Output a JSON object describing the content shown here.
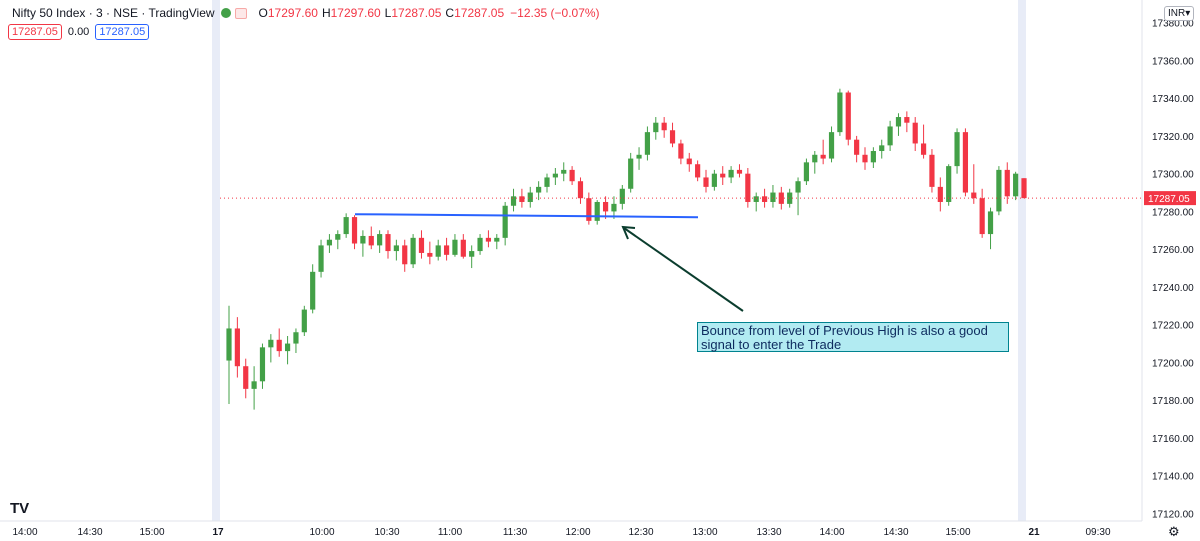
{
  "legend": {
    "symbol": "Nifty 50 Index · 3 · NSE · TradingView",
    "o_label": "O",
    "o": "17297.60",
    "h_label": "H",
    "h": "17297.60",
    "l_label": "L",
    "l": "17287.05",
    "c_label": "C",
    "c": "17287.05",
    "change": "−12.35 (−0.07%)"
  },
  "values_row": {
    "last": "17287.05",
    "change": "0.00",
    "last2": "17287.05"
  },
  "currency_label": "INR▾",
  "last_price_label": "17287.05",
  "annotation_text": "Bounce from level of Previous High is also a good signal to enter the Trade",
  "logo_text": "TV",
  "settings_icon": "gear-icon",
  "colors": {
    "up": "#43a047",
    "down": "#f23645",
    "trendline": "#2962ff",
    "arrow": "#0b3d2e",
    "session": "#e8ecf7"
  },
  "chart_data": {
    "type": "candlestick",
    "title": "",
    "y_ticks": [
      "17380.00",
      "17360.00",
      "17340.00",
      "17320.00",
      "17300.00",
      "17280.00",
      "17260.00",
      "17240.00",
      "17220.00",
      "17200.00",
      "17180.00",
      "17160.00",
      "17140.00",
      "17120.00"
    ],
    "x_ticks": [
      "14:00",
      "14:30",
      "15:00",
      "17",
      "10:00",
      "10:30",
      "11:00",
      "11:30",
      "12:00",
      "12:30",
      "13:00",
      "13:30",
      "14:00",
      "14:30",
      "15:00",
      "21",
      "09:30"
    ],
    "ylim": [
      17116,
      17392
    ],
    "trendline": {
      "y": 17278
    },
    "candles": [
      {
        "o": 17201,
        "h": 17230,
        "l": 17178,
        "c": 17218
      },
      {
        "o": 17218,
        "h": 17224,
        "l": 17192,
        "c": 17198
      },
      {
        "o": 17198,
        "h": 17202,
        "l": 17181,
        "c": 17186
      },
      {
        "o": 17186,
        "h": 17198,
        "l": 17175,
        "c": 17190
      },
      {
        "o": 17190,
        "h": 17210,
        "l": 17186,
        "c": 17208
      },
      {
        "o": 17208,
        "h": 17215,
        "l": 17200,
        "c": 17212
      },
      {
        "o": 17212,
        "h": 17218,
        "l": 17203,
        "c": 17206
      },
      {
        "o": 17206,
        "h": 17214,
        "l": 17199,
        "c": 17210
      },
      {
        "o": 17210,
        "h": 17218,
        "l": 17205,
        "c": 17216
      },
      {
        "o": 17216,
        "h": 17230,
        "l": 17214,
        "c": 17228
      },
      {
        "o": 17228,
        "h": 17252,
        "l": 17226,
        "c": 17248
      },
      {
        "o": 17248,
        "h": 17265,
        "l": 17245,
        "c": 17262
      },
      {
        "o": 17262,
        "h": 17268,
        "l": 17258,
        "c": 17265
      },
      {
        "o": 17265,
        "h": 17270,
        "l": 17260,
        "c": 17268
      },
      {
        "o": 17268,
        "h": 17279,
        "l": 17266,
        "c": 17277
      },
      {
        "o": 17277,
        "h": 17278,
        "l": 17260,
        "c": 17263
      },
      {
        "o": 17263,
        "h": 17270,
        "l": 17256,
        "c": 17267
      },
      {
        "o": 17267,
        "h": 17272,
        "l": 17260,
        "c": 17262
      },
      {
        "o": 17262,
        "h": 17270,
        "l": 17258,
        "c": 17268
      },
      {
        "o": 17268,
        "h": 17270,
        "l": 17255,
        "c": 17259
      },
      {
        "o": 17259,
        "h": 17265,
        "l": 17254,
        "c": 17262
      },
      {
        "o": 17262,
        "h": 17265,
        "l": 17248,
        "c": 17252
      },
      {
        "o": 17252,
        "h": 17268,
        "l": 17250,
        "c": 17266
      },
      {
        "o": 17266,
        "h": 17270,
        "l": 17255,
        "c": 17258
      },
      {
        "o": 17258,
        "h": 17264,
        "l": 17252,
        "c": 17256
      },
      {
        "o": 17256,
        "h": 17265,
        "l": 17254,
        "c": 17262
      },
      {
        "o": 17262,
        "h": 17266,
        "l": 17254,
        "c": 17257
      },
      {
        "o": 17257,
        "h": 17268,
        "l": 17256,
        "c": 17265
      },
      {
        "o": 17265,
        "h": 17268,
        "l": 17255,
        "c": 17256
      },
      {
        "o": 17256,
        "h": 17262,
        "l": 17250,
        "c": 17259
      },
      {
        "o": 17259,
        "h": 17268,
        "l": 17257,
        "c": 17266
      },
      {
        "o": 17266,
        "h": 17270,
        "l": 17261,
        "c": 17264
      },
      {
        "o": 17264,
        "h": 17268,
        "l": 17260,
        "c": 17266
      },
      {
        "o": 17266,
        "h": 17285,
        "l": 17262,
        "c": 17283
      },
      {
        "o": 17283,
        "h": 17292,
        "l": 17280,
        "c": 17288
      },
      {
        "o": 17288,
        "h": 17292,
        "l": 17282,
        "c": 17285
      },
      {
        "o": 17285,
        "h": 17293,
        "l": 17282,
        "c": 17290
      },
      {
        "o": 17290,
        "h": 17296,
        "l": 17286,
        "c": 17293
      },
      {
        "o": 17293,
        "h": 17300,
        "l": 17290,
        "c": 17298
      },
      {
        "o": 17298,
        "h": 17303,
        "l": 17294,
        "c": 17300
      },
      {
        "o": 17300,
        "h": 17306,
        "l": 17296,
        "c": 17302
      },
      {
        "o": 17302,
        "h": 17304,
        "l": 17294,
        "c": 17296
      },
      {
        "o": 17296,
        "h": 17298,
        "l": 17284,
        "c": 17287
      },
      {
        "o": 17287,
        "h": 17290,
        "l": 17273,
        "c": 17275
      },
      {
        "o": 17275,
        "h": 17286,
        "l": 17273,
        "c": 17285
      },
      {
        "o": 17285,
        "h": 17288,
        "l": 17276,
        "c": 17280
      },
      {
        "o": 17280,
        "h": 17288,
        "l": 17276,
        "c": 17284
      },
      {
        "o": 17284,
        "h": 17294,
        "l": 17281,
        "c": 17292
      },
      {
        "o": 17292,
        "h": 17311,
        "l": 17290,
        "c": 17308
      },
      {
        "o": 17308,
        "h": 17314,
        "l": 17302,
        "c": 17310
      },
      {
        "o": 17310,
        "h": 17325,
        "l": 17307,
        "c": 17322
      },
      {
        "o": 17322,
        "h": 17330,
        "l": 17318,
        "c": 17327
      },
      {
        "o": 17327,
        "h": 17330,
        "l": 17319,
        "c": 17323
      },
      {
        "o": 17323,
        "h": 17327,
        "l": 17314,
        "c": 17316
      },
      {
        "o": 17316,
        "h": 17318,
        "l": 17305,
        "c": 17308
      },
      {
        "o": 17308,
        "h": 17311,
        "l": 17301,
        "c": 17305
      },
      {
        "o": 17305,
        "h": 17307,
        "l": 17296,
        "c": 17298
      },
      {
        "o": 17298,
        "h": 17302,
        "l": 17290,
        "c": 17293
      },
      {
        "o": 17293,
        "h": 17302,
        "l": 17291,
        "c": 17300
      },
      {
        "o": 17300,
        "h": 17304,
        "l": 17294,
        "c": 17298
      },
      {
        "o": 17298,
        "h": 17304,
        "l": 17295,
        "c": 17302
      },
      {
        "o": 17302,
        "h": 17305,
        "l": 17298,
        "c": 17300
      },
      {
        "o": 17300,
        "h": 17303,
        "l": 17282,
        "c": 17285
      },
      {
        "o": 17285,
        "h": 17290,
        "l": 17280,
        "c": 17288
      },
      {
        "o": 17288,
        "h": 17292,
        "l": 17282,
        "c": 17285
      },
      {
        "o": 17285,
        "h": 17294,
        "l": 17282,
        "c": 17290
      },
      {
        "o": 17290,
        "h": 17293,
        "l": 17281,
        "c": 17284
      },
      {
        "o": 17284,
        "h": 17292,
        "l": 17282,
        "c": 17290
      },
      {
        "o": 17290,
        "h": 17298,
        "l": 17278,
        "c": 17296
      },
      {
        "o": 17296,
        "h": 17308,
        "l": 17294,
        "c": 17306
      },
      {
        "o": 17306,
        "h": 17312,
        "l": 17300,
        "c": 17310
      },
      {
        "o": 17310,
        "h": 17318,
        "l": 17305,
        "c": 17308
      },
      {
        "o": 17308,
        "h": 17325,
        "l": 17306,
        "c": 17322
      },
      {
        "o": 17322,
        "h": 17345,
        "l": 17320,
        "c": 17343
      },
      {
        "o": 17343,
        "h": 17344,
        "l": 17315,
        "c": 17318
      },
      {
        "o": 17318,
        "h": 17320,
        "l": 17306,
        "c": 17310
      },
      {
        "o": 17310,
        "h": 17314,
        "l": 17302,
        "c": 17306
      },
      {
        "o": 17306,
        "h": 17314,
        "l": 17303,
        "c": 17312
      },
      {
        "o": 17312,
        "h": 17318,
        "l": 17308,
        "c": 17315
      },
      {
        "o": 17315,
        "h": 17328,
        "l": 17312,
        "c": 17325
      },
      {
        "o": 17325,
        "h": 17332,
        "l": 17320,
        "c": 17330
      },
      {
        "o": 17330,
        "h": 17333,
        "l": 17322,
        "c": 17327
      },
      {
        "o": 17327,
        "h": 17330,
        "l": 17312,
        "c": 17316
      },
      {
        "o": 17316,
        "h": 17326,
        "l": 17308,
        "c": 17310
      },
      {
        "o": 17310,
        "h": 17313,
        "l": 17290,
        "c": 17293
      },
      {
        "o": 17293,
        "h": 17298,
        "l": 17280,
        "c": 17285
      },
      {
        "o": 17285,
        "h": 17305,
        "l": 17283,
        "c": 17304
      },
      {
        "o": 17304,
        "h": 17324,
        "l": 17300,
        "c": 17322
      },
      {
        "o": 17322,
        "h": 17324,
        "l": 17288,
        "c": 17290
      },
      {
        "o": 17290,
        "h": 17305,
        "l": 17284,
        "c": 17287
      },
      {
        "o": 17287,
        "h": 17292,
        "l": 17266,
        "c": 17268
      },
      {
        "o": 17268,
        "h": 17282,
        "l": 17260,
        "c": 17280
      },
      {
        "o": 17280,
        "h": 17304,
        "l": 17278,
        "c": 17302
      },
      {
        "o": 17302,
        "h": 17306,
        "l": 17284,
        "c": 17288
      },
      {
        "o": 17288,
        "h": 17301,
        "l": 17286,
        "c": 17300
      },
      {
        "o": 17297.6,
        "h": 17297.6,
        "l": 17287.05,
        "c": 17287.05
      }
    ]
  }
}
